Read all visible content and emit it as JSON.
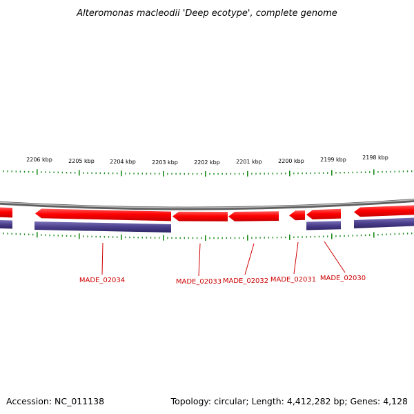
{
  "title": "Alteromonas macleodii 'Deep ecotype', complete genome",
  "footer": {
    "accession": "Accession: NC_011138",
    "summary": "Topology: circular; Length: 4,412,282 bp; Genes: 4,128"
  },
  "colors": {
    "backbone": "#8a8a8a",
    "gene_fill": "#ff0000",
    "cds_fill": "#4b3f8c",
    "tick": "#1a8a1a",
    "label": "#cc0000"
  },
  "scale_labels": [
    "2206 kbp",
    "2205 kbp",
    "2204 kbp",
    "2203 kbp",
    "2202 kbp",
    "2201 kbp",
    "2200 kbp",
    "2199 kbp",
    "2198 kbp"
  ],
  "gene_labels": [
    "MADE_02034",
    "MADE_02033",
    "MADE_02032",
    "MADE_02031",
    "MADE_02030"
  ]
}
